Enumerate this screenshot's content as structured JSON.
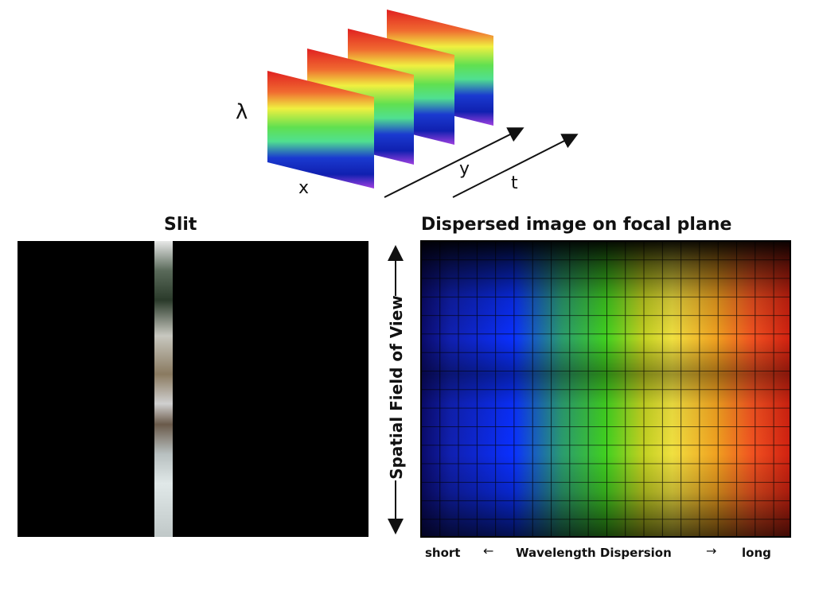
{
  "labels": {
    "slit": "Slit",
    "dispersed": "Dispersed image on focal plane",
    "lambda": "λ",
    "x": "x",
    "y": "y",
    "t": "t",
    "spatial_fov": "Spatial Field of View",
    "short": "short",
    "wavelength_dispersion": "Wavelength Dispersion",
    "long": "long",
    "arrow_left": "←",
    "arrow_right": "→"
  },
  "colors": {
    "spectrum_top": "#e02020",
    "spectrum_yellow": "#f0f040",
    "spectrum_green": "#50e070",
    "spectrum_blue": "#1020c0",
    "spectrum_bottom": "#9030d0",
    "background_panel": "#000000"
  }
}
